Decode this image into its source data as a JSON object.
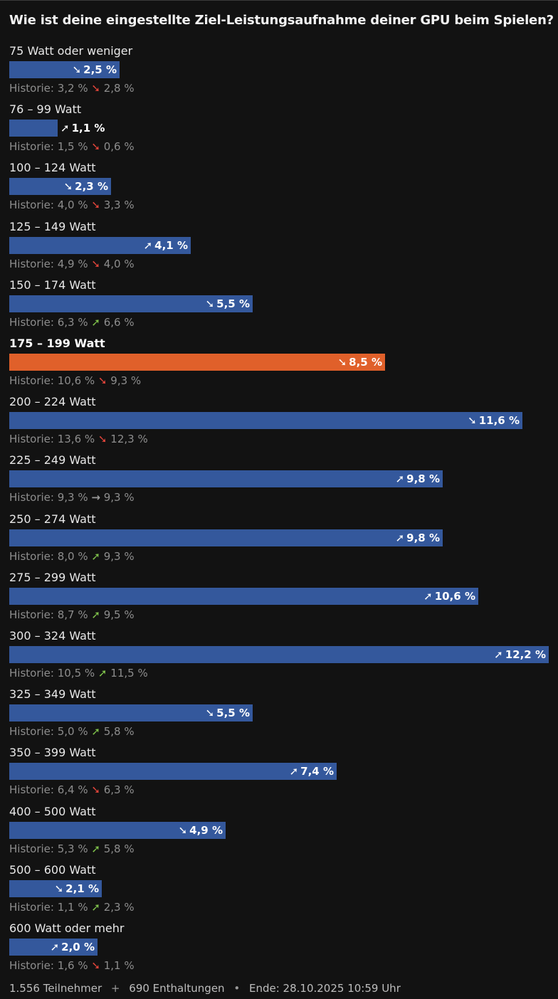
{
  "poll": {
    "question": "Wie ist deine eingestellte Ziel-Leistungsaufnahme deiner GPU beim Spielen?",
    "options": [
      {
        "label": "75 Watt oder weniger",
        "percent": 2.5,
        "percent_text": "2,5 %",
        "trend": "down",
        "history_label": "Historie:",
        "history_prev": "3,2 %",
        "history_trend": "down",
        "history_next": "2,8 %",
        "selected": false
      },
      {
        "label": "76 – 99 Watt",
        "percent": 1.1,
        "percent_text": "1,1 %",
        "trend": "up",
        "history_label": "Historie:",
        "history_prev": "1,5 %",
        "history_trend": "down",
        "history_next": "0,6 %",
        "selected": false
      },
      {
        "label": "100 – 124 Watt",
        "percent": 2.3,
        "percent_text": "2,3 %",
        "trend": "down",
        "history_label": "Historie:",
        "history_prev": "4,0 %",
        "history_trend": "down",
        "history_next": "3,3 %",
        "selected": false
      },
      {
        "label": "125 – 149 Watt",
        "percent": 4.1,
        "percent_text": "4,1 %",
        "trend": "up",
        "history_label": "Historie:",
        "history_prev": "4,9 %",
        "history_trend": "down",
        "history_next": "4,0 %",
        "selected": false
      },
      {
        "label": "150 – 174 Watt",
        "percent": 5.5,
        "percent_text": "5,5 %",
        "trend": "down",
        "history_label": "Historie:",
        "history_prev": "6,3 %",
        "history_trend": "up",
        "history_next": "6,6 %",
        "selected": false
      },
      {
        "label": "175 – 199 Watt",
        "percent": 8.5,
        "percent_text": "8,5 %",
        "trend": "down",
        "history_label": "Historie:",
        "history_prev": "10,6 %",
        "history_trend": "down",
        "history_next": "9,3 %",
        "selected": true
      },
      {
        "label": "200 – 224 Watt",
        "percent": 11.6,
        "percent_text": "11,6 %",
        "trend": "down",
        "history_label": "Historie:",
        "history_prev": "13,6 %",
        "history_trend": "down",
        "history_next": "12,3 %",
        "selected": false
      },
      {
        "label": "225 – 249 Watt",
        "percent": 9.8,
        "percent_text": "9,8 %",
        "trend": "up",
        "history_label": "Historie:",
        "history_prev": "9,3 %",
        "history_trend": "flat",
        "history_next": "9,3 %",
        "selected": false
      },
      {
        "label": "250 – 274 Watt",
        "percent": 9.8,
        "percent_text": "9,8 %",
        "trend": "up",
        "history_label": "Historie:",
        "history_prev": "8,0 %",
        "history_trend": "up",
        "history_next": "9,3 %",
        "selected": false
      },
      {
        "label": "275 – 299 Watt",
        "percent": 10.6,
        "percent_text": "10,6 %",
        "trend": "up",
        "history_label": "Historie:",
        "history_prev": "8,7 %",
        "history_trend": "up",
        "history_next": "9,5 %",
        "selected": false
      },
      {
        "label": "300 – 324 Watt",
        "percent": 12.2,
        "percent_text": "12,2 %",
        "trend": "up",
        "history_label": "Historie:",
        "history_prev": "10,5 %",
        "history_trend": "up",
        "history_next": "11,5 %",
        "selected": false
      },
      {
        "label": "325 – 349 Watt",
        "percent": 5.5,
        "percent_text": "5,5 %",
        "trend": "down",
        "history_label": "Historie:",
        "history_prev": "5,0 %",
        "history_trend": "up",
        "history_next": "5,8 %",
        "selected": false
      },
      {
        "label": "350 – 399 Watt",
        "percent": 7.4,
        "percent_text": "7,4 %",
        "trend": "up",
        "history_label": "Historie:",
        "history_prev": "6,4 %",
        "history_trend": "down",
        "history_next": "6,3 %",
        "selected": false
      },
      {
        "label": "400 – 500 Watt",
        "percent": 4.9,
        "percent_text": "4,9 %",
        "trend": "down",
        "history_label": "Historie:",
        "history_prev": "5,3 %",
        "history_trend": "up",
        "history_next": "5,8 %",
        "selected": false
      },
      {
        "label": "500 – 600 Watt",
        "percent": 2.1,
        "percent_text": "2,1 %",
        "trend": "down",
        "history_label": "Historie:",
        "history_prev": "1,1 %",
        "history_trend": "up",
        "history_next": "2,3 %",
        "selected": false
      },
      {
        "label": "600 Watt oder mehr",
        "percent": 2.0,
        "percent_text": "2,0 %",
        "trend": "up",
        "history_label": "Historie:",
        "history_prev": "1,6 %",
        "history_trend": "down",
        "history_next": "1,1 %",
        "selected": false
      }
    ],
    "footer": {
      "participants": "1.556 Teilnehmer",
      "sep1": "+",
      "abstentions": "690 Enthaltungen",
      "sep2": "•",
      "end": "Ende: 28.10.2025 10:59 Uhr"
    }
  },
  "colors": {
    "bar": "#34589c",
    "bar_selected": "#e0602a",
    "trend_up": "#7fc24b",
    "trend_down": "#e0443a",
    "trend_flat": "#9a9a9a",
    "background": "#121212"
  },
  "chart_data": {
    "type": "bar",
    "orientation": "horizontal",
    "title": "Wie ist deine eingestellte Ziel-Leistungsaufnahme deiner GPU beim Spielen?",
    "categories": [
      "75 Watt oder weniger",
      "76 – 99 Watt",
      "100 – 124 Watt",
      "125 – 149 Watt",
      "150 – 174 Watt",
      "175 – 199 Watt",
      "200 – 224 Watt",
      "225 – 249 Watt",
      "250 – 274 Watt",
      "275 – 299 Watt",
      "300 – 324 Watt",
      "325 – 349 Watt",
      "350 – 399 Watt",
      "400 – 500 Watt",
      "500 – 600 Watt",
      "600 Watt oder mehr"
    ],
    "values": [
      2.5,
      1.1,
      2.3,
      4.1,
      5.5,
      8.5,
      11.6,
      9.8,
      9.8,
      10.6,
      12.2,
      5.5,
      7.4,
      4.9,
      2.1,
      2.0
    ],
    "history_previous": [
      3.2,
      1.5,
      4.0,
      4.9,
      6.3,
      10.6,
      13.6,
      9.3,
      8.0,
      8.7,
      10.5,
      5.0,
      6.4,
      5.3,
      1.1,
      1.6
    ],
    "history_next": [
      2.8,
      0.6,
      3.3,
      4.0,
      6.6,
      9.3,
      12.3,
      9.3,
      9.3,
      9.5,
      11.5,
      5.8,
      6.3,
      5.8,
      2.3,
      1.1
    ],
    "xlim": [
      0,
      12.2
    ],
    "grid": false,
    "legend": "none"
  }
}
